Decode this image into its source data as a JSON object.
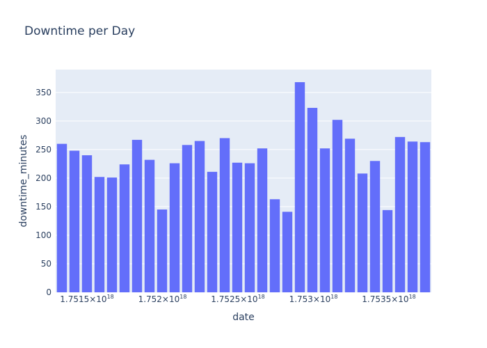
{
  "chart_data": {
    "type": "bar",
    "title": "Downtime per Day",
    "xlabel": "date",
    "ylabel": "downtime_minutes",
    "ylim": [
      0,
      390
    ],
    "y_ticks": [
      0,
      50,
      100,
      150,
      200,
      250,
      300,
      350
    ],
    "x_ticks": [
      {
        "mantissa": "1.7515",
        "exponent": "18"
      },
      {
        "mantissa": "1.752",
        "exponent": "18"
      },
      {
        "mantissa": "1.7525",
        "exponent": "18"
      },
      {
        "mantissa": "1.753",
        "exponent": "18"
      },
      {
        "mantissa": "1.7535",
        "exponent": "18"
      }
    ],
    "values": [
      260,
      248,
      240,
      202,
      201,
      224,
      267,
      232,
      145,
      226,
      258,
      265,
      211,
      270,
      227,
      226,
      252,
      163,
      141,
      368,
      323,
      252,
      302,
      269,
      208,
      230,
      144,
      272,
      264,
      263
    ],
    "bar_color": "#636efa",
    "plot_background": "#e5ecf6",
    "grid": true,
    "legend": "none"
  }
}
